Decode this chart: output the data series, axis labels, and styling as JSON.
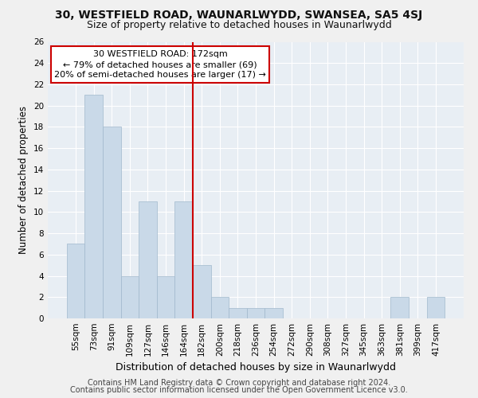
{
  "title": "30, WESTFIELD ROAD, WAUNARLWYDD, SWANSEA, SA5 4SJ",
  "subtitle": "Size of property relative to detached houses in Waunarlwydd",
  "xlabel": "Distribution of detached houses by size in Waunarlwydd",
  "ylabel": "Number of detached properties",
  "categories": [
    "55sqm",
    "73sqm",
    "91sqm",
    "109sqm",
    "127sqm",
    "146sqm",
    "164sqm",
    "182sqm",
    "200sqm",
    "218sqm",
    "236sqm",
    "254sqm",
    "272sqm",
    "290sqm",
    "308sqm",
    "327sqm",
    "345sqm",
    "363sqm",
    "381sqm",
    "399sqm",
    "417sqm"
  ],
  "values": [
    7,
    21,
    18,
    4,
    11,
    4,
    11,
    5,
    2,
    1,
    1,
    1,
    0,
    0,
    0,
    0,
    0,
    0,
    2,
    0,
    2
  ],
  "bar_color": "#c9d9e8",
  "bar_edge_color": "#a0b8cc",
  "highlight_line_index": 7,
  "highlight_line_color": "#cc0000",
  "annotation_line1": "30 WESTFIELD ROAD: 172sqm",
  "annotation_line2": "← 79% of detached houses are smaller (69)",
  "annotation_line3": "20% of semi-detached houses are larger (17) →",
  "annotation_box_color": "#ffffff",
  "annotation_box_edge": "#cc0000",
  "ylim": [
    0,
    26
  ],
  "yticks": [
    0,
    2,
    4,
    6,
    8,
    10,
    12,
    14,
    16,
    18,
    20,
    22,
    24,
    26
  ],
  "background_color": "#e8eef4",
  "grid_color": "#ffffff",
  "footer_line1": "Contains HM Land Registry data © Crown copyright and database right 2024.",
  "footer_line2": "Contains public sector information licensed under the Open Government Licence v3.0.",
  "title_fontsize": 10,
  "subtitle_fontsize": 9,
  "xlabel_fontsize": 9,
  "ylabel_fontsize": 8.5,
  "tick_fontsize": 7.5,
  "annotation_fontsize": 8,
  "footer_fontsize": 7
}
